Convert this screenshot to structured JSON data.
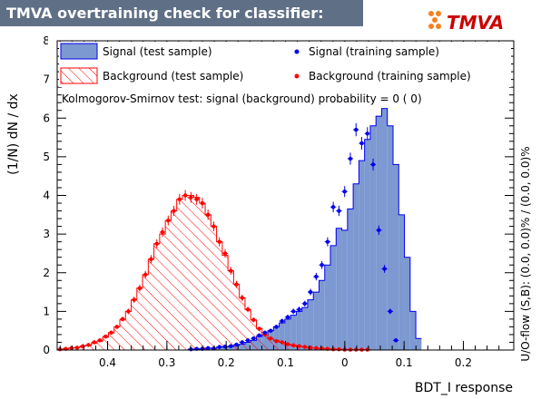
{
  "title": "TMVA overtraining check for classifier: BDT_I",
  "logo_text": "TMVA",
  "ks_text": "Kolmogorov-Smirnov test: signal (background) probability =     0 (    0)",
  "overflow_text": "U/O-flow (S,B): (0.0, 0.0)% / (0.0, 0.0)%",
  "colors": {
    "signal_fill": "#7d99d1",
    "signal_line": "#0000ee",
    "background_hatch": "#ff0000",
    "signal_points": "#0000ee",
    "background_points": "#ff0000"
  },
  "legend": {
    "signal_test": "Signal (test sample)",
    "background_test": "Background (test sample)",
    "signal_train": "Signal (training sample)",
    "background_train": "Background (training sample)"
  },
  "chart_data": {
    "type": "bar",
    "xlabel": "BDT_I response",
    "ylabel": "(1/N) dN / dx",
    "xlim": [
      -0.285,
      0.485
    ],
    "ylim": [
      0,
      8
    ],
    "x_ticks": [
      "0.4",
      "0.3",
      "0.2",
      "0.1",
      "0",
      "0.1",
      "0.2"
    ],
    "y_ticks": [
      "0",
      "1",
      "2",
      "3",
      "4",
      "5",
      "6",
      "7",
      "8"
    ],
    "bin_width": 0.0096,
    "bin_start": 0.485,
    "signal_test": [
      0,
      0,
      0,
      0,
      0,
      0,
      0,
      0,
      0,
      0,
      0,
      0,
      0,
      0,
      0,
      0,
      0,
      0,
      0,
      0,
      0,
      0,
      0,
      0.02,
      0.02,
      0.03,
      0.05,
      0.05,
      0.07,
      0.08,
      0.09,
      0.12,
      0.15,
      0.2,
      0.25,
      0.35,
      0.4,
      0.5,
      0.6,
      0.7,
      0.8,
      0.9,
      1.0,
      1.1,
      1.3,
      1.5,
      1.8,
      2.2,
      2.7,
      3.15,
      3.1,
      3.65,
      4.3,
      4.9,
      5.45,
      5.8,
      6.05,
      6.25,
      5.8,
      4.8,
      3.5,
      2.4,
      1.0,
      0.3
    ],
    "background_test": [
      0.02,
      0.03,
      0.05,
      0.07,
      0.1,
      0.12,
      0.17,
      0.23,
      0.33,
      0.45,
      0.6,
      0.78,
      1.0,
      1.3,
      1.6,
      1.95,
      2.35,
      2.75,
      3.0,
      3.35,
      3.6,
      3.9,
      4.0,
      4.0,
      3.95,
      3.8,
      3.5,
      3.2,
      2.8,
      2.45,
      2.05,
      1.7,
      1.35,
      1.05,
      0.78,
      0.56,
      0.4,
      0.3,
      0.25,
      0.2,
      0.15,
      0.12,
      0.1,
      0.08,
      0.06,
      0.05,
      0.04,
      0.03,
      0.02,
      0.02,
      0.01,
      0.01,
      0.01,
      0.01,
      0.01,
      0,
      0,
      0,
      0,
      0,
      0,
      0,
      0,
      0
    ],
    "signal_train": [
      0,
      0,
      0,
      0,
      0,
      0,
      0,
      0,
      0,
      0,
      0,
      0,
      0,
      0,
      0,
      0,
      0,
      0,
      0,
      0,
      0,
      0,
      0,
      0.02,
      0.03,
      0.03,
      0.05,
      0.04,
      0.08,
      0.09,
      0.1,
      0.14,
      0.2,
      0.25,
      0.3,
      0.38,
      0.45,
      0.5,
      0.6,
      0.75,
      0.85,
      1.0,
      1.05,
      1.2,
      1.5,
      1.9,
      2.2,
      2.8,
      3.7,
      3.6,
      4.1,
      4.95,
      5.7,
      5.35,
      5.6,
      4.8,
      3.1,
      2.1,
      1.0,
      0.25,
      0,
      0,
      0,
      0
    ],
    "background_train": [
      0.02,
      0.03,
      0.05,
      0.06,
      0.1,
      0.13,
      0.2,
      0.25,
      0.35,
      0.45,
      0.6,
      0.8,
      1.0,
      1.3,
      1.6,
      1.95,
      2.35,
      2.75,
      3.05,
      3.35,
      3.6,
      3.9,
      4.0,
      3.95,
      3.9,
      3.8,
      3.5,
      3.2,
      2.8,
      2.5,
      2.05,
      1.7,
      1.35,
      1.05,
      0.78,
      0.55,
      0.4,
      0.3,
      0.23,
      0.2,
      0.15,
      0.12,
      0.1,
      0.08,
      0.06,
      0.05,
      0.04,
      0.03,
      0.02,
      0.02,
      0.01,
      0.01,
      0.01,
      0.01,
      0.01,
      0,
      0,
      0,
      0,
      0,
      0,
      0,
      0,
      0
    ]
  }
}
